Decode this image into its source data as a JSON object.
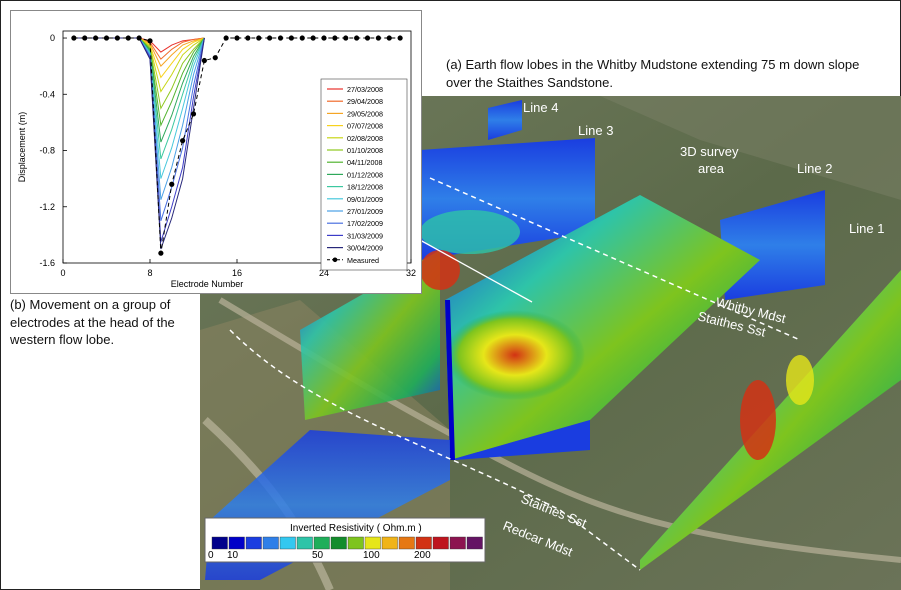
{
  "caption_a": "(a) Earth flow lobes in the Whitby Mudstone extending 75 m down slope over the Staithes Sandstone.",
  "caption_b": "(b) Movement on a group of electrodes at the head of the western flow lobe.",
  "labels": {
    "line1": "Line 1",
    "line2": "Line 2",
    "line3": "Line 3",
    "line4": "Line 4",
    "survey_area_1": "3D survey",
    "survey_area_2": "area",
    "whitby": "Whitby Mdst",
    "staithes_upper": "Staithes Sst",
    "staithes_lower": "Staithes Sst",
    "redcar": "Redcar Mdst"
  },
  "colorbar": {
    "title": "Inverted Resistivity  ( Ohm.m )",
    "tick_labels": [
      "0",
      "10",
      "50",
      "100",
      "200"
    ],
    "colors": [
      "#00008b",
      "#0000c8",
      "#1a3de0",
      "#2f7fe8",
      "#33c8f0",
      "#2ec4a8",
      "#1fae5a",
      "#138c2c",
      "#7ec41e",
      "#e6e619",
      "#f0b419",
      "#e67814",
      "#d23214",
      "#be141e",
      "#8c1450",
      "#641464"
    ]
  },
  "chart_data": {
    "type": "line",
    "xlabel": "Electrode Number",
    "ylabel": "Displacement (m)",
    "xlim": [
      0,
      32
    ],
    "ylim": [
      -1.6,
      0.05
    ],
    "x_ticks": [
      0,
      8,
      16,
      24,
      32
    ],
    "y_ticks": [
      0,
      -0.4,
      -0.8,
      -1.2,
      -1.6
    ],
    "x_tick_labels": [
      "0",
      "8",
      "16",
      "24",
      "32"
    ],
    "y_tick_labels": [
      "0",
      "-0.4",
      "-0.8",
      "-1.2",
      "-1.6"
    ],
    "legend_position": "right",
    "series": [
      {
        "name": "27/03/2008",
        "color": "#e8302a",
        "x": [
          1,
          2,
          3,
          4,
          5,
          6,
          7,
          8,
          9,
          10,
          11,
          12,
          13
        ],
        "y": [
          0,
          0,
          0,
          0,
          0,
          0,
          0,
          -0.02,
          -0.1,
          -0.05,
          -0.02,
          -0.01,
          0
        ]
      },
      {
        "name": "29/04/2008",
        "color": "#f06a2a",
        "x": [
          1,
          2,
          3,
          4,
          5,
          6,
          7,
          8,
          9,
          10,
          11,
          12,
          13
        ],
        "y": [
          0,
          0,
          0,
          0,
          0,
          0,
          0,
          -0.03,
          -0.15,
          -0.08,
          -0.03,
          -0.01,
          0
        ]
      },
      {
        "name": "29/05/2008",
        "color": "#f5a524",
        "x": [
          1,
          2,
          3,
          4,
          5,
          6,
          7,
          8,
          9,
          10,
          11,
          12,
          13
        ],
        "y": [
          0,
          0,
          0,
          0,
          0,
          0,
          0,
          -0.04,
          -0.2,
          -0.12,
          -0.05,
          -0.02,
          0
        ]
      },
      {
        "name": "07/07/2008",
        "color": "#f7d21e",
        "x": [
          1,
          2,
          3,
          4,
          5,
          6,
          7,
          8,
          9,
          10,
          11,
          12,
          13
        ],
        "y": [
          0,
          0,
          0,
          0,
          0,
          0,
          0,
          -0.05,
          -0.28,
          -0.18,
          -0.08,
          -0.03,
          0
        ]
      },
      {
        "name": "02/08/2008",
        "color": "#c8d616",
        "x": [
          1,
          2,
          3,
          4,
          5,
          6,
          7,
          8,
          9,
          10,
          11,
          12,
          13
        ],
        "y": [
          0,
          0,
          0,
          0,
          0,
          0,
          0,
          -0.06,
          -0.38,
          -0.26,
          -0.12,
          -0.05,
          0
        ]
      },
      {
        "name": "01/10/2008",
        "color": "#8ec71e",
        "x": [
          1,
          2,
          3,
          4,
          5,
          6,
          7,
          8,
          9,
          10,
          11,
          12,
          13
        ],
        "y": [
          0,
          0,
          0,
          0,
          0,
          0,
          0,
          -0.07,
          -0.5,
          -0.36,
          -0.18,
          -0.08,
          0
        ]
      },
      {
        "name": "04/11/2008",
        "color": "#52b430",
        "x": [
          1,
          2,
          3,
          4,
          5,
          6,
          7,
          8,
          9,
          10,
          11,
          12,
          13
        ],
        "y": [
          0,
          0,
          0,
          0,
          0,
          0,
          0,
          -0.08,
          -0.62,
          -0.45,
          -0.25,
          -0.1,
          0
        ]
      },
      {
        "name": "01/12/2008",
        "color": "#2ea85a",
        "x": [
          1,
          2,
          3,
          4,
          5,
          6,
          7,
          8,
          9,
          10,
          11,
          12,
          13
        ],
        "y": [
          0,
          0,
          0,
          0,
          0,
          0,
          0,
          -0.09,
          -0.74,
          -0.55,
          -0.32,
          -0.13,
          0
        ]
      },
      {
        "name": "18/12/2008",
        "color": "#3cc8a0",
        "x": [
          1,
          2,
          3,
          4,
          5,
          6,
          7,
          8,
          9,
          10,
          11,
          12,
          13
        ],
        "y": [
          0,
          0,
          0,
          0,
          0,
          0,
          0,
          -0.1,
          -0.86,
          -0.65,
          -0.4,
          -0.16,
          0
        ]
      },
      {
        "name": "09/01/2009",
        "color": "#48c8dc",
        "x": [
          1,
          2,
          3,
          4,
          5,
          6,
          7,
          8,
          9,
          10,
          11,
          12,
          13
        ],
        "y": [
          0,
          0,
          0,
          0,
          0,
          0,
          0,
          -0.11,
          -1.0,
          -0.78,
          -0.5,
          -0.2,
          0
        ]
      },
      {
        "name": "27/01/2009",
        "color": "#4aa0e6",
        "x": [
          1,
          2,
          3,
          4,
          5,
          6,
          7,
          8,
          9,
          10,
          11,
          12,
          13
        ],
        "y": [
          0,
          0,
          0,
          0,
          0,
          0,
          0,
          -0.12,
          -1.15,
          -0.92,
          -0.62,
          -0.26,
          0
        ]
      },
      {
        "name": "17/02/2009",
        "color": "#4a70e0",
        "x": [
          1,
          2,
          3,
          4,
          5,
          6,
          7,
          8,
          9,
          10,
          11,
          12,
          13
        ],
        "y": [
          0,
          0,
          0,
          0,
          0,
          0,
          0,
          -0.13,
          -1.3,
          -1.06,
          -0.78,
          -0.34,
          0
        ]
      },
      {
        "name": "31/03/2009",
        "color": "#3c3cc8",
        "x": [
          1,
          2,
          3,
          4,
          5,
          6,
          7,
          8,
          9,
          10,
          11,
          12,
          13
        ],
        "y": [
          0,
          0,
          0,
          0,
          0,
          0,
          0,
          -0.14,
          -1.45,
          -1.2,
          -0.92,
          -0.42,
          0
        ]
      },
      {
        "name": "30/04/2009",
        "color": "#28287a",
        "x": [
          1,
          2,
          3,
          4,
          5,
          6,
          7,
          8,
          9,
          10,
          11,
          12,
          13
        ],
        "y": [
          0,
          0,
          0,
          0,
          0,
          0,
          0,
          -0.15,
          -1.5,
          -1.28,
          -1.0,
          -0.5,
          0
        ]
      }
    ],
    "measured": {
      "name": "Measured",
      "color": "#000000",
      "x": [
        1,
        2,
        3,
        4,
        5,
        6,
        7,
        8,
        9,
        10,
        11,
        12,
        13,
        14,
        15,
        16,
        17,
        18,
        19,
        20,
        21,
        22,
        23,
        24,
        25,
        26,
        27,
        28,
        29,
        30,
        31
      ],
      "y": [
        0,
        0,
        0,
        0,
        0,
        0,
        0,
        -0.02,
        -1.53,
        -1.04,
        -0.73,
        -0.54,
        -0.16,
        -0.14,
        0,
        0,
        0,
        0,
        0,
        0,
        0,
        0,
        0,
        0,
        0,
        0,
        0,
        0,
        0,
        0,
        0
      ]
    }
  }
}
